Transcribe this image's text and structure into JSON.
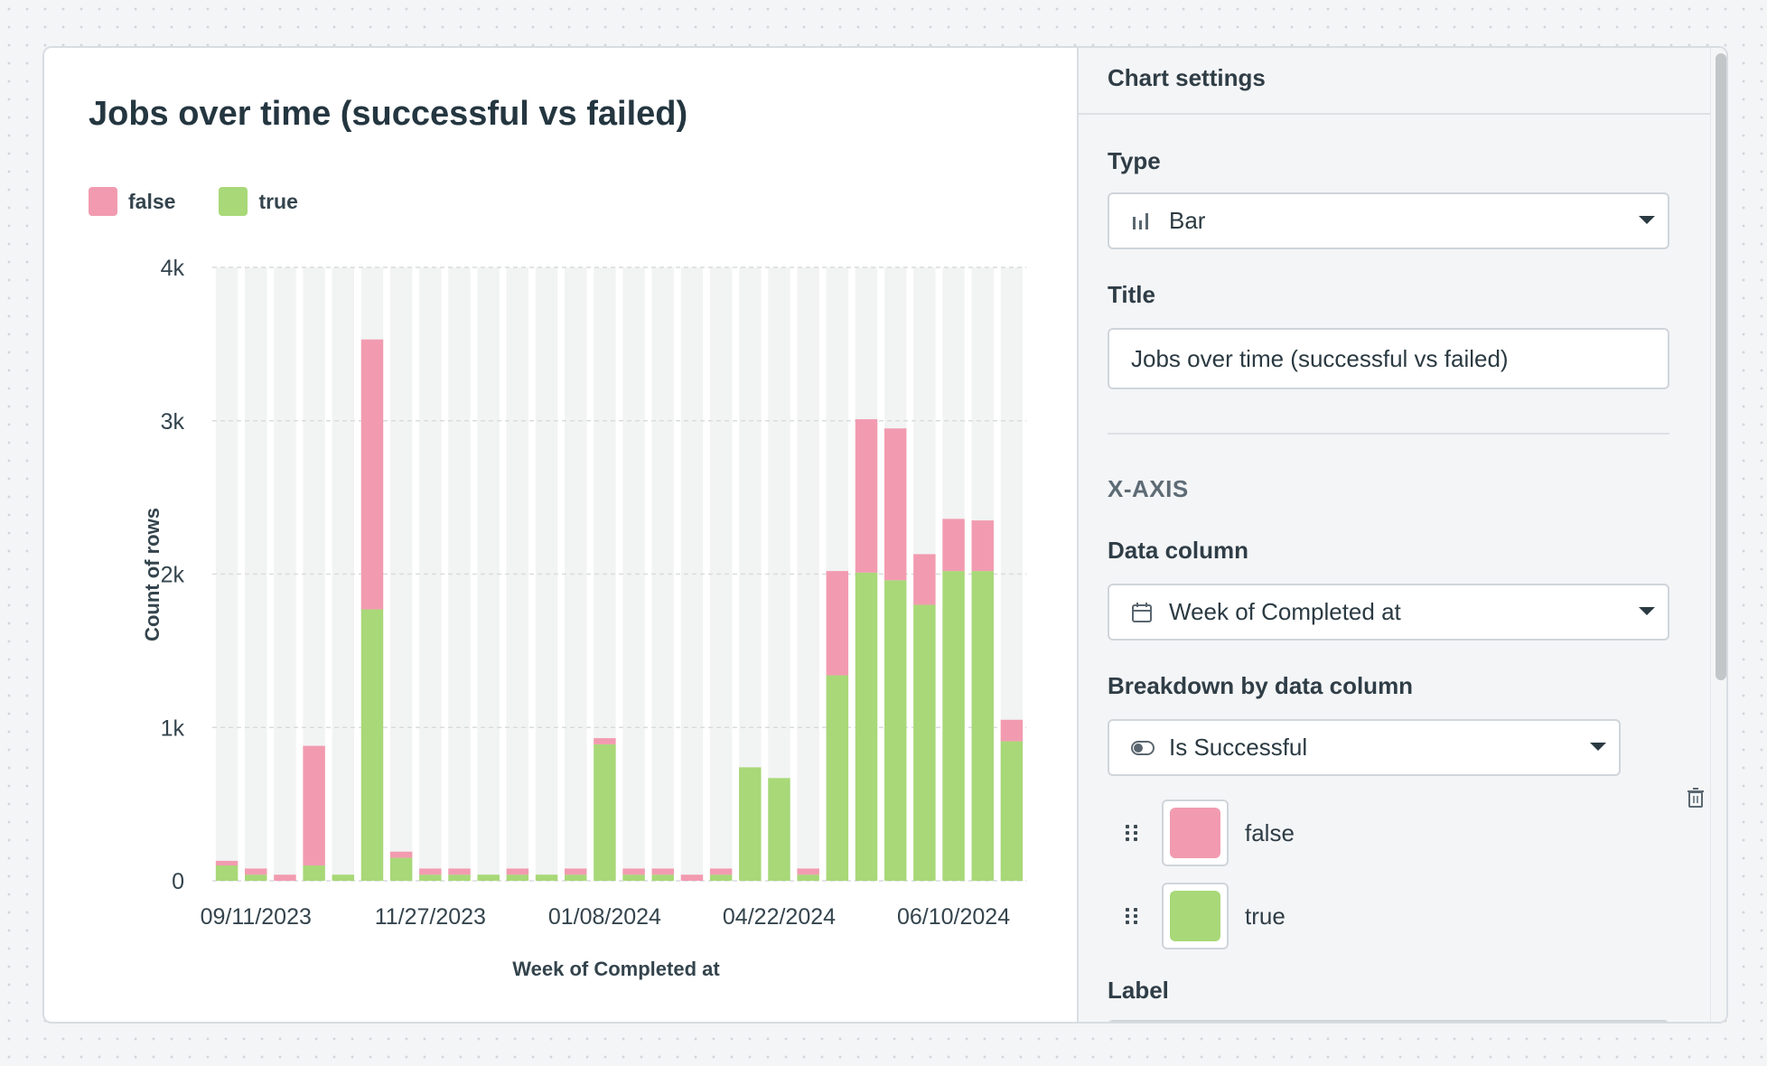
{
  "chart_title": "Jobs over time (successful vs failed)",
  "legend": [
    {
      "label": "false",
      "color": "#f29bb0"
    },
    {
      "label": "true",
      "color": "#a8d878"
    }
  ],
  "chart_data": {
    "type": "bar",
    "stacked": true,
    "title": "Jobs over time (successful vs failed)",
    "xlabel": "Week of Completed at",
    "ylabel": "Count of rows",
    "ylim": [
      0,
      4000
    ],
    "yticks": [
      0,
      1000,
      2000,
      3000,
      4000
    ],
    "ytick_labels": [
      "0",
      "1k",
      "2k",
      "3k",
      "4k"
    ],
    "xtick_labels": [
      {
        "label": "09/11/2023",
        "index": 1
      },
      {
        "label": "11/27/2023",
        "index": 7
      },
      {
        "label": "01/08/2024",
        "index": 13
      },
      {
        "label": "04/22/2024",
        "index": 19
      },
      {
        "label": "06/10/2024",
        "index": 25
      }
    ],
    "bar_count": 28,
    "series": [
      {
        "name": "true",
        "color": "#a8d878",
        "values": [
          100,
          40,
          0,
          100,
          40,
          1770,
          150,
          40,
          40,
          40,
          40,
          40,
          40,
          890,
          40,
          40,
          0,
          40,
          740,
          670,
          40,
          1340,
          2010,
          1960,
          1800,
          2020,
          2020,
          910
        ]
      },
      {
        "name": "false",
        "color": "#f29bb0",
        "values": [
          30,
          40,
          40,
          780,
          0,
          1760,
          40,
          40,
          40,
          0,
          40,
          0,
          40,
          40,
          40,
          40,
          40,
          40,
          0,
          0,
          40,
          680,
          1000,
          990,
          330,
          340,
          330,
          140
        ]
      }
    ],
    "background_bar_color": "#f2f3f3"
  },
  "settings": {
    "header": "Chart settings",
    "type_label": "Type",
    "type_value": "Bar",
    "title_label": "Title",
    "title_value": "Jobs over time (successful vs failed)",
    "xaxis_section": "X-AXIS",
    "data_column_label": "Data column",
    "data_column_value": "Week of Completed at",
    "breakdown_label": "Breakdown by data column",
    "breakdown_value": "Is Successful",
    "colors": [
      {
        "label": "false",
        "color": "#f29bb0"
      },
      {
        "label": "true",
        "color": "#a8d878"
      }
    ],
    "label_label": "Label"
  }
}
